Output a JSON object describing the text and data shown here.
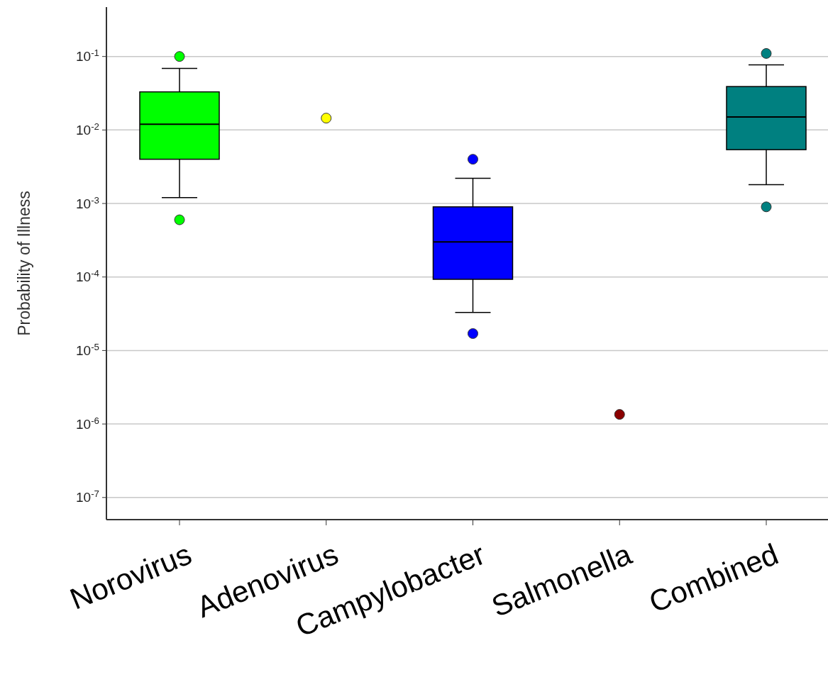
{
  "chart_data": {
    "type": "box",
    "ylabel": "Probability of Illness",
    "categories": [
      "Norovirus",
      "Adenovirus",
      "Campylobacter",
      "Salmonella",
      "Combined"
    ],
    "boxes": [
      {
        "low": 0.0012,
        "q1": 0.004,
        "median": 0.012,
        "q3": 0.033,
        "high": 0.069,
        "outliers": [
          0.1,
          0.0006
        ]
      },
      null,
      {
        "low": 3.3e-05,
        "q1": 9.3e-05,
        "median": 0.0003,
        "q3": 0.0009,
        "high": 0.0022,
        "outliers": [
          0.004,
          1.7e-05
        ]
      },
      null,
      {
        "low": 0.0018,
        "q1": 0.0054,
        "median": 0.015,
        "q3": 0.039,
        "high": 0.077,
        "outliers": [
          0.11,
          0.0009
        ]
      }
    ],
    "colors": [
      "#00ff00",
      null,
      "#0000ff",
      null,
      "#008080"
    ],
    "series": [
      {
        "type": "scatter",
        "color": "#ffff00",
        "x": [
          "Adenovirus"
        ],
        "values": [
          0.0145
        ]
      },
      {
        "type": "scatter",
        "color": "#8b0000",
        "x": [
          "Salmonella"
        ],
        "values": [
          1.35e-06
        ]
      }
    ],
    "log": true,
    "ylim": [
      5e-08,
      0.47
    ],
    "yticks": [
      {
        "value": 0.1,
        "label": "10$^{-1}$"
      },
      {
        "value": 0.01,
        "label": "10$^{-2}$"
      },
      {
        "value": 0.001,
        "label": "10$^{-3}$"
      },
      {
        "value": 0.0001,
        "label": "10$^{-4}$"
      },
      {
        "value": 1e-05,
        "label": "10$^{-5}$"
      },
      {
        "value": 1e-06,
        "label": "10$^{-6}$"
      },
      {
        "value": 1e-07,
        "label": "10$^{-7}$"
      }
    ],
    "grid": "y",
    "marker": "circle"
  }
}
